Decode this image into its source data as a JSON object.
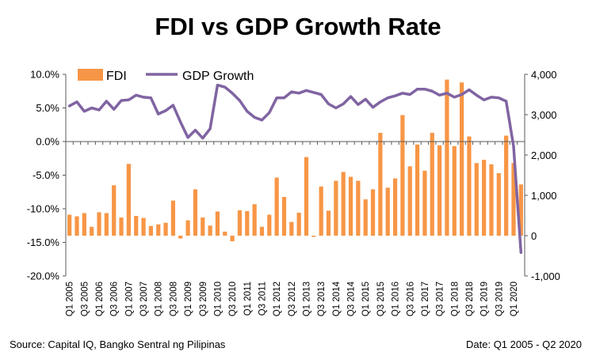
{
  "chart_data": {
    "type": "bar+line",
    "title": "FDI vs GDP Growth Rate",
    "categories": [
      "Q1 2005",
      "Q2 2005",
      "Q3 2005",
      "Q4 2005",
      "Q1 2006",
      "Q2 2006",
      "Q3 2006",
      "Q4 2006",
      "Q1 2007",
      "Q2 2007",
      "Q3 2007",
      "Q4 2007",
      "Q1 2008",
      "Q2 2008",
      "Q3 2008",
      "Q4 2008",
      "Q1 2009",
      "Q2 2009",
      "Q3 2009",
      "Q4 2009",
      "Q1 2010",
      "Q2 2010",
      "Q3 2010",
      "Q4 2010",
      "Q1 2011",
      "Q2 2011",
      "Q3 2011",
      "Q4 2011",
      "Q1 2012",
      "Q2 2012",
      "Q3 2012",
      "Q4 2012",
      "Q1 2013",
      "Q2 2013",
      "Q3 2013",
      "Q4 2013",
      "Q1 2014",
      "Q2 2014",
      "Q3 2014",
      "Q4 2014",
      "Q1 2015",
      "Q2 2015",
      "Q3 2015",
      "Q4 2015",
      "Q1 2016",
      "Q2 2016",
      "Q3 2016",
      "Q4 2016",
      "Q1 2017",
      "Q2 2017",
      "Q3 2017",
      "Q4 2017",
      "Q1 2018",
      "Q2 2018",
      "Q3 2018",
      "Q4 2018",
      "Q1 2019",
      "Q2 2019",
      "Q3 2019",
      "Q4 2019",
      "Q1 2020",
      "Q2 2020"
    ],
    "x_tick_labels": [
      "Q1 2005",
      "Q3 2005",
      "Q1 2006",
      "Q3 2006",
      "Q1 2007",
      "Q3 2007",
      "Q1 2008",
      "Q3 2008",
      "Q1 2009",
      "Q3 2009",
      "Q1 2010",
      "Q3 2010",
      "Q1 2011",
      "Q3 2011",
      "Q1 2012",
      "Q3 2012",
      "Q1 2013",
      "Q3 2013",
      "Q1 2014",
      "Q3 2014",
      "Q1 2015",
      "Q3 2015",
      "Q1 2016",
      "Q3 2016",
      "Q1 2017",
      "Q3 2017",
      "Q1 2018",
      "Q3 2018",
      "Q1 2019",
      "Q3 2019",
      "Q1 2020"
    ],
    "series": [
      {
        "name": "FDI",
        "type": "bar",
        "axis": "right",
        "color": "#F79646",
        "values": [
          520,
          480,
          560,
          220,
          580,
          560,
          1250,
          450,
          1780,
          490,
          440,
          240,
          280,
          320,
          870,
          -70,
          380,
          1150,
          450,
          250,
          600,
          100,
          -140,
          630,
          610,
          780,
          220,
          520,
          1440,
          960,
          340,
          570,
          1950,
          -30,
          1220,
          620,
          1360,
          1580,
          1460,
          1360,
          900,
          1150,
          2550,
          1190,
          1420,
          2990,
          1720,
          2260,
          1610,
          2550,
          2240,
          3870,
          2220,
          3800,
          2460,
          1800,
          1880,
          1770,
          1550,
          2480,
          1800,
          1270
        ]
      },
      {
        "name": "GDP Growth",
        "type": "line",
        "axis": "left",
        "color": "#8064A2",
        "values": [
          5.3,
          5.9,
          4.5,
          5.0,
          4.7,
          6.0,
          4.8,
          6.1,
          6.2,
          6.9,
          6.6,
          6.5,
          4.1,
          4.6,
          5.4,
          2.9,
          0.6,
          1.7,
          0.5,
          1.9,
          8.4,
          8.1,
          7.2,
          6.1,
          4.5,
          3.6,
          3.2,
          4.3,
          6.5,
          6.5,
          7.4,
          7.2,
          7.6,
          7.3,
          7.0,
          5.6,
          5.0,
          5.6,
          6.7,
          5.5,
          6.3,
          5.1,
          5.9,
          6.5,
          6.8,
          7.2,
          7.0,
          7.8,
          7.8,
          7.5,
          6.9,
          7.2,
          6.6,
          7.0,
          7.7,
          6.9,
          6.2,
          6.6,
          6.5,
          6.0,
          -0.7,
          -16.5
        ]
      }
    ],
    "left_axis": {
      "min": -20,
      "max": 10,
      "step": 5,
      "format": "percent",
      "tick_labels": [
        "10.0%",
        "5.0%",
        "0.0%",
        "-5.0%",
        "-10.0%",
        "-15.0%",
        "-20.0%"
      ]
    },
    "right_axis": {
      "min": -1000,
      "max": 4000,
      "step": 1000,
      "tick_labels": [
        "4,000",
        "3,000",
        "2,000",
        "1,000",
        "0",
        "-1,000"
      ]
    },
    "legend": {
      "placement": "top-left",
      "entries": [
        "FDI",
        "GDP Growth"
      ]
    },
    "grid": false
  },
  "footer": {
    "source": "Source: Capital IQ, Bangko Sentral ng Pilipinas",
    "date": "Date: Q1 2005 - Q2 2020"
  }
}
